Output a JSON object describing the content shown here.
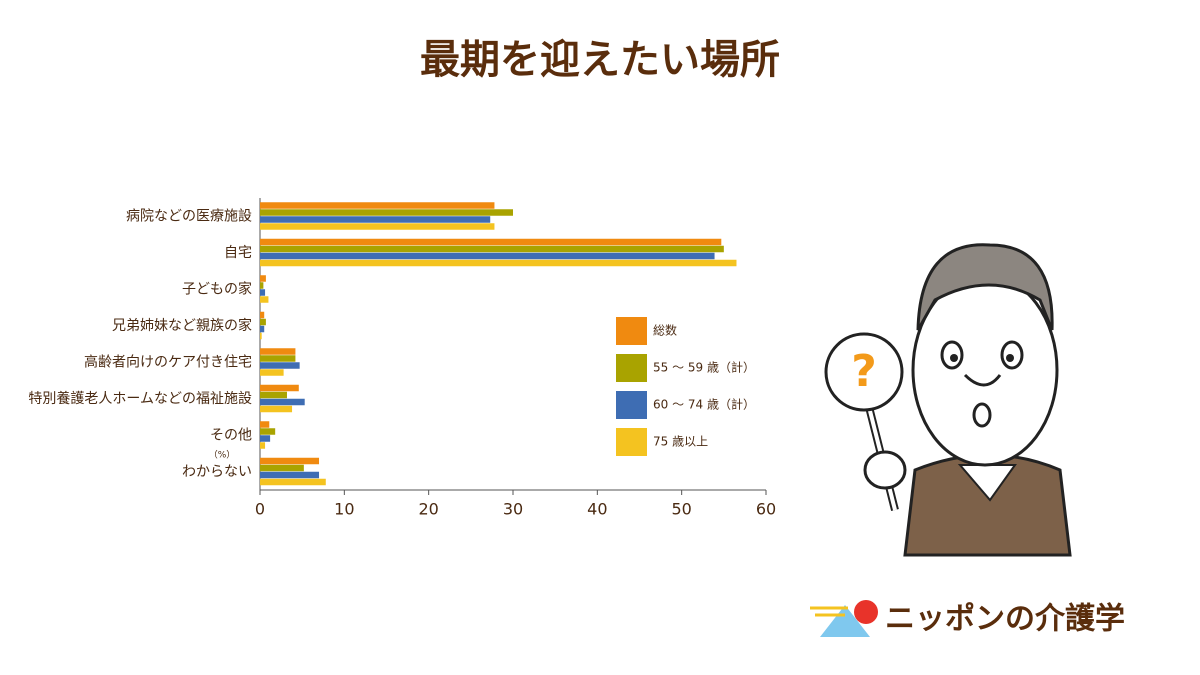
{
  "chart_data": {
    "type": "hbar",
    "title": "最期を迎えたい場所",
    "categories": [
      "病院などの医療施設",
      "自宅",
      "子どもの家",
      "兄弟姉妹など親族の家",
      "高齢者向けのケア付き住宅",
      "特別養護老人ホームなどの福祉施設",
      "その他",
      "わからない"
    ],
    "series": [
      {
        "name": "総数",
        "color": "#f08a10",
        "values": [
          27.8,
          54.7,
          0.7,
          0.5,
          4.2,
          4.6,
          1.1,
          7.0
        ]
      },
      {
        "name": "55 ～ 59 歳（計）",
        "color": "#a9a300",
        "values": [
          30.0,
          55.0,
          0.4,
          0.7,
          4.2,
          3.2,
          1.8,
          5.2
        ]
      },
      {
        "name": "60 ～ 74 歳（計）",
        "color": "#3e6db3",
        "values": [
          27.3,
          53.9,
          0.6,
          0.5,
          4.7,
          5.3,
          1.2,
          7.0
        ]
      },
      {
        "name": "75 歳以上",
        "color": "#f4c320",
        "values": [
          27.8,
          56.5,
          1.0,
          0.2,
          2.8,
          3.8,
          0.6,
          7.8
        ]
      }
    ],
    "xlim": [
      0,
      60
    ],
    "xticks": [
      0,
      10,
      20,
      30,
      40,
      50,
      60
    ],
    "unit_label": "（%）"
  },
  "logo": "ニッポンの介護学"
}
